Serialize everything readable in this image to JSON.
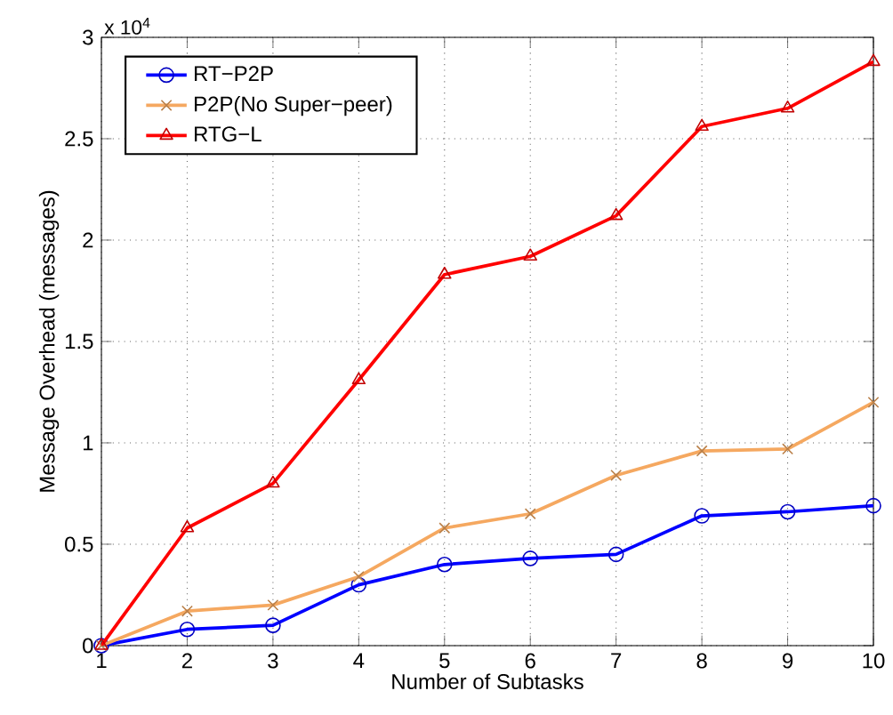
{
  "chart_data": {
    "type": "line",
    "xlabel": "Number of Subtasks",
    "ylabel": "Message Overhead (messages)",
    "annotations": [
      "x 10$^{4}$"
    ],
    "x": [
      1,
      2,
      3,
      4,
      5,
      6,
      7,
      8,
      9,
      10
    ],
    "series": [
      {
        "name": "RT−P2P",
        "color": "#0000ff",
        "marker": "circle",
        "values": [
          0,
          0.08,
          0.1,
          0.3,
          0.4,
          0.43,
          0.45,
          0.64,
          0.66,
          0.69
        ]
      },
      {
        "name": "P2P(No Super−peer)",
        "color": "#f5a860",
        "marker": "cross",
        "values": [
          0,
          0.17,
          0.2,
          0.34,
          0.58,
          0.65,
          0.84,
          0.96,
          0.97,
          1.2
        ]
      },
      {
        "name": "RTG−L",
        "color": "#ff0000",
        "marker": "triangle",
        "values": [
          0,
          0.58,
          0.8,
          1.31,
          1.83,
          1.92,
          2.12,
          2.56,
          2.65,
          2.88
        ]
      }
    ],
    "xlim": [
      1,
      10
    ],
    "xticks": [
      1,
      2,
      3,
      4,
      5,
      6,
      7,
      8,
      9,
      10
    ],
    "ylim": [
      0,
      3
    ],
    "yticks": [
      0,
      0.5,
      1,
      1.5,
      2,
      2.5,
      3
    ],
    "grid": true,
    "legend": "top left",
    "line_style": "solid"
  }
}
